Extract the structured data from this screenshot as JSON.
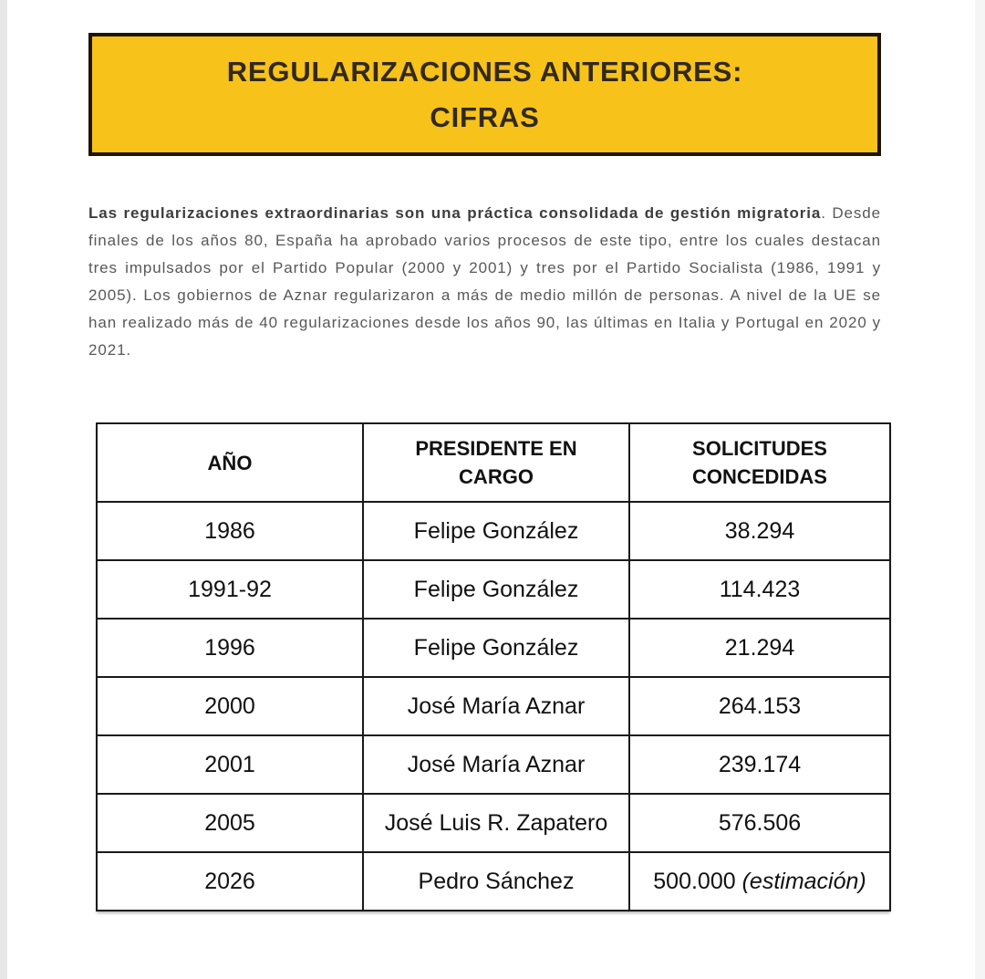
{
  "page": {
    "title_box": {
      "line1": "REGULARIZACIONES ANTERIORES:",
      "line2": "CIFRAS",
      "bg_color": "#F7C31B",
      "border_color": "#1E1507",
      "text_color": "#33291A"
    },
    "intro": {
      "bold_text": "Las regularizaciones extraordinarias son una práctica consolidada de gestión migratoria",
      "regular_text": ". Desde finales de los años 80, España ha aprobado varios procesos de este tipo, entre los cuales destacan tres impulsados por el Partido Popular (2000 y 2001) y tres por el Partido Socialista (1986, 1991 y 2005). Los gobiernos de Aznar regularizaron a más de medio millón de personas. A nivel de la UE se han realizado más de 40 regularizaciones desde los años 90, las últimas en Italia y Portugal en 2020 y 2021."
    },
    "table": {
      "columns": [
        "AÑO",
        "PRESIDENTE EN\nCARGO",
        "SOLICITUDES\nCONCEDIDAS"
      ],
      "rows": [
        {
          "year": "1986",
          "president": "Felipe González",
          "granted": "38.294",
          "granted_note": ""
        },
        {
          "year": "1991-92",
          "president": "Felipe González",
          "granted": "114.423",
          "granted_note": ""
        },
        {
          "year": "1996",
          "president": "Felipe González",
          "granted": "21.294",
          "granted_note": ""
        },
        {
          "year": "2000",
          "president": "José María Aznar",
          "granted": "264.153",
          "granted_note": ""
        },
        {
          "year": "2001",
          "president": "José María Aznar",
          "granted": "239.174",
          "granted_note": ""
        },
        {
          "year": "2005",
          "president": "José Luis R. Zapatero",
          "granted": "576.506",
          "granted_note": ""
        },
        {
          "year": "2026",
          "president": "Pedro Sánchez",
          "granted": "500.000",
          "granted_note": "(estimación)"
        }
      ]
    }
  }
}
